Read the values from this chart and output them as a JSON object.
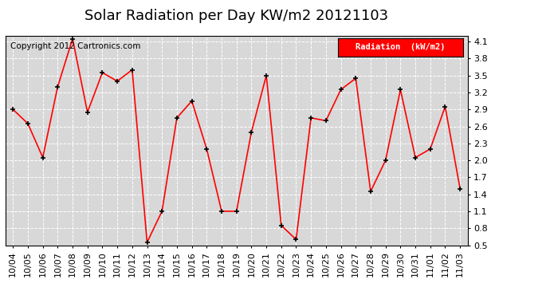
{
  "title": "Solar Radiation per Day KW/m2 20121103",
  "copyright_text": "Copyright 2012 Cartronics.com",
  "legend_label": "Radiation  (kW/m2)",
  "dates": [
    "10/04",
    "10/05",
    "10/06",
    "10/07",
    "10/08",
    "10/09",
    "10/10",
    "10/11",
    "10/12",
    "10/13",
    "10/14",
    "10/15",
    "10/16",
    "10/17",
    "10/18",
    "10/19",
    "10/20",
    "10/21",
    "10/22",
    "10/23",
    "10/24",
    "10/25",
    "10/26",
    "10/27",
    "10/28",
    "10/29",
    "10/30",
    "10/31",
    "11/01",
    "11/02",
    "11/03"
  ],
  "values": [
    2.9,
    2.65,
    2.05,
    3.3,
    4.15,
    2.85,
    3.55,
    3.4,
    3.6,
    0.55,
    1.1,
    2.75,
    3.05,
    2.2,
    1.1,
    1.1,
    2.5,
    3.5,
    0.85,
    0.6,
    2.75,
    2.7,
    3.25,
    3.45,
    1.45,
    2.0,
    3.25,
    2.05,
    2.2,
    2.95,
    1.5
  ],
  "ylim": [
    0.5,
    4.2
  ],
  "yticks": [
    0.5,
    0.8,
    1.1,
    1.4,
    1.7,
    2.0,
    2.3,
    2.6,
    2.9,
    3.2,
    3.5,
    3.8,
    4.1
  ],
  "line_color": "red",
  "marker_color": "black",
  "bg_color": "#ffffff",
  "plot_bg_color": "#d8d8d8",
  "grid_color": "#ffffff",
  "legend_bg": "red",
  "legend_text_color": "white",
  "title_fontsize": 13,
  "copyright_fontsize": 7.5,
  "tick_fontsize": 8,
  "ylabel_fontsize": 9
}
